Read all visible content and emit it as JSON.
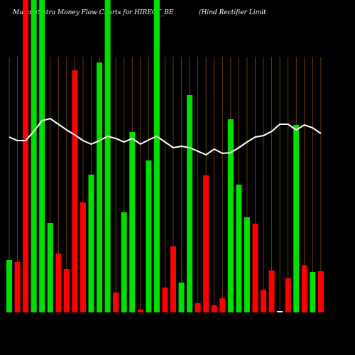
{
  "chart_data": {
    "type": "bar",
    "title": "MunafaSutra  Money Flow  Charts for HIRECT_BE",
    "subtitle": "(Hind Rectifier Limit",
    "categories": [
      null,
      null,
      null,
      null,
      null,
      null,
      null,
      null,
      null,
      null,
      null,
      null,
      null,
      null,
      null,
      null,
      null,
      null,
      null,
      null,
      null,
      null,
      null,
      null,
      null,
      null,
      null,
      null,
      null,
      null,
      null,
      null,
      null,
      null,
      null,
      null,
      null,
      null,
      null
    ],
    "values": [
      74,
      71,
      440,
      440,
      440,
      126,
      83,
      61,
      341,
      155,
      194,
      352,
      440,
      28,
      141,
      254,
      4,
      214,
      440,
      35,
      93,
      42,
      306,
      13,
      193,
      10,
      20,
      272,
      180,
      134,
      125,
      32,
      59,
      2,
      48,
      264,
      66,
      57,
      58
    ],
    "colors": [
      "#00e000",
      "#ff0000",
      "#ff0000",
      "#00e000",
      "#00e000",
      "#00e000",
      "#ff0000",
      "#ff0000",
      "#ff0000",
      "#ff0000",
      "#00e000",
      "#00e000",
      "#00e000",
      "#ff0000",
      "#00e000",
      "#00e000",
      "#ff0000",
      "#00e000",
      "#00e000",
      "#ff0000",
      "#ff0000",
      "#00e000",
      "#00e000",
      "#ff0000",
      "#ff0000",
      "#ff0000",
      "#ff0000",
      "#00e000",
      "#00e000",
      "#00e000",
      "#ff0000",
      "#ff0000",
      "#ff0000",
      "#ffffff",
      "#ff0000",
      "#00e000",
      "#ff0000",
      "#00e000",
      "#ff0000"
    ],
    "line": {
      "color": "#ffffff",
      "values": [
        247,
        242,
        242,
        255,
        270,
        273,
        265,
        257,
        250,
        242,
        237,
        242,
        248,
        245,
        240,
        245,
        237,
        243,
        248,
        240,
        232,
        234,
        232,
        227,
        222,
        230,
        224,
        225,
        232,
        240,
        247,
        249,
        255,
        265,
        265,
        257,
        264,
        260,
        252
      ]
    },
    "ylim": [
      0,
      440
    ]
  }
}
